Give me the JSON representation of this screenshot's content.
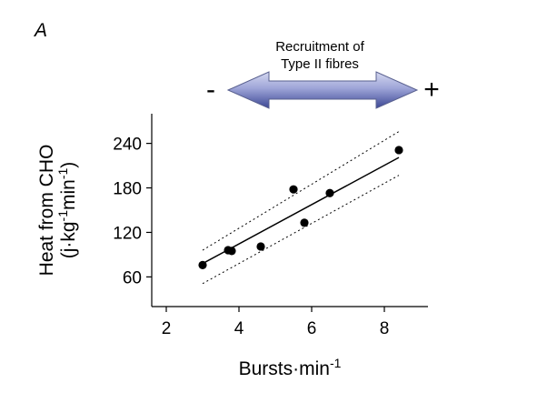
{
  "panel_label": "A",
  "annotation": {
    "line1": "Recruitment of",
    "line2": "Type II fibres",
    "minus_sign": "-",
    "plus_sign": "+"
  },
  "chart_data": {
    "type": "scatter",
    "xlabel": "Bursts·min",
    "xlabel_sup": "-1",
    "ylabel": "Heat from CHO",
    "ylabel_units": "(j·kg",
    "ylabel_units_sup1": "-1",
    "ylabel_units_mid": "min",
    "ylabel_units_sup2": "-1",
    "ylabel_units_end": ")",
    "xlim": [
      1.6,
      9.2
    ],
    "ylim": [
      20,
      280
    ],
    "xticks": [
      2,
      4,
      6,
      8
    ],
    "yticks": [
      60,
      120,
      180,
      240
    ],
    "points": [
      {
        "x": 3.0,
        "y": 76
      },
      {
        "x": 3.7,
        "y": 96
      },
      {
        "x": 3.8,
        "y": 95
      },
      {
        "x": 4.6,
        "y": 101
      },
      {
        "x": 5.5,
        "y": 178
      },
      {
        "x": 5.8,
        "y": 133
      },
      {
        "x": 6.5,
        "y": 173
      },
      {
        "x": 8.4,
        "y": 231
      }
    ],
    "regression": {
      "x": [
        3.0,
        8.4
      ],
      "y": [
        78,
        221
      ]
    },
    "ci_upper": {
      "x": [
        3.0,
        8.4
      ],
      "y": [
        96,
        256
      ]
    },
    "ci_lower": {
      "x": [
        3.0,
        8.4
      ],
      "y": [
        51,
        197
      ]
    }
  }
}
